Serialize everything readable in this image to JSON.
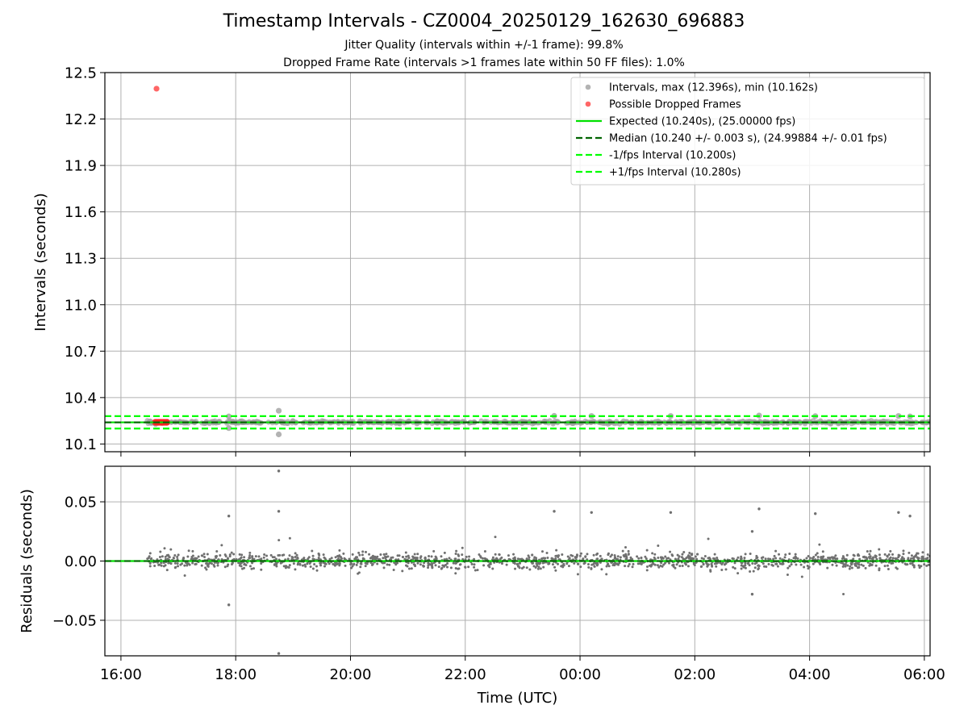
{
  "title": "Timestamp Intervals - CZ0004_20250129_162630_696883",
  "subtitle_1": "Jitter Quality (intervals within +/-1 frame): 99.8%",
  "subtitle_2": "Dropped Frame Rate (intervals >1 frames late within 50 FF files): 1.0%",
  "colors": {
    "intervals": "#a0a0a0",
    "dropped": "#ff4040",
    "expected": "#00e000",
    "median": "#006400",
    "fps_band": "#00ff00",
    "residual_points": "#707070",
    "grid": "#b0b0b0"
  },
  "chart_data": [
    {
      "type": "scatter",
      "panel": "intervals",
      "ylabel": "Intervals (seconds)",
      "xlabel": "",
      "x_range_hours_utc": [
        15.72,
        30.1
      ],
      "ylim": [
        10.05,
        12.5
      ],
      "yticks": [
        10.1,
        10.4,
        10.7,
        11.0,
        11.3,
        11.6,
        11.9,
        12.2,
        12.5
      ],
      "ytick_labels": [
        "10.1",
        "10.4",
        "10.7",
        "11.0",
        "11.3",
        "11.6",
        "11.9",
        "12.2",
        "12.5"
      ],
      "grid": true,
      "legend_position": "top-right",
      "legend": [
        {
          "label": "Intervals, max (12.396s), min (10.162s)",
          "kind": "dot",
          "color": "#a0a0a0"
        },
        {
          "label": "Possible Dropped Frames",
          "kind": "dot",
          "color": "#ff4040"
        },
        {
          "label": "Expected (10.240s), (25.00000 fps)",
          "kind": "line",
          "color": "#00e000"
        },
        {
          "label": "Median (10.240 +/- 0.003 s), (24.99884 +/- 0.01 fps)",
          "kind": "dash",
          "color": "#006400"
        },
        {
          "label": "-1/fps Interval (10.200s)",
          "kind": "dash",
          "color": "#00ff00"
        },
        {
          "label": "+1/fps Interval (10.280s)",
          "kind": "dash",
          "color": "#00ff00"
        }
      ],
      "reference_lines": {
        "expected": 10.24,
        "median": 10.24,
        "minus_1_fps": 10.2,
        "plus_1_fps": 10.28
      },
      "outliers": [
        {
          "x": 16.62,
          "y": 12.396,
          "series": "dropped"
        },
        {
          "x": 18.75,
          "y": 10.315,
          "series": "intervals"
        },
        {
          "x": 18.75,
          "y": 10.162,
          "series": "intervals"
        },
        {
          "x": 17.88,
          "y": 10.278,
          "series": "intervals"
        },
        {
          "x": 17.88,
          "y": 10.203,
          "series": "intervals"
        },
        {
          "x": 23.55,
          "y": 10.282,
          "series": "intervals"
        },
        {
          "x": 24.2,
          "y": 10.281,
          "series": "intervals"
        },
        {
          "x": 25.58,
          "y": 10.281,
          "series": "intervals"
        },
        {
          "x": 27.12,
          "y": 10.284,
          "series": "intervals"
        },
        {
          "x": 28.1,
          "y": 10.28,
          "series": "intervals"
        },
        {
          "x": 29.55,
          "y": 10.281,
          "series": "intervals"
        },
        {
          "x": 29.75,
          "y": 10.278,
          "series": "intervals"
        }
      ],
      "dropped_cluster": {
        "x_start": 16.6,
        "x_end": 16.8,
        "y": 10.24
      },
      "bulk_intervals": {
        "x_start": 16.45,
        "x_end": 30.1,
        "y_center": 10.24,
        "spread": 0.01
      }
    },
    {
      "type": "scatter",
      "panel": "residuals",
      "ylabel": "Residuals (seconds)",
      "xlabel": "Time (UTC)",
      "x_range_hours_utc": [
        15.72,
        30.1
      ],
      "xticks_hours": [
        16,
        18,
        20,
        22,
        24,
        26,
        28,
        30
      ],
      "xtick_labels": [
        "16:00",
        "18:00",
        "20:00",
        "22:00",
        "00:00",
        "02:00",
        "04:00",
        "06:00"
      ],
      "ylim": [
        -0.08,
        0.08
      ],
      "yticks": [
        -0.05,
        0.0,
        0.05
      ],
      "ytick_labels": [
        "−0.05",
        "0.00",
        "0.05"
      ],
      "grid": true,
      "outliers": [
        {
          "x": 18.75,
          "y": 0.076
        },
        {
          "x": 18.75,
          "y": -0.078
        },
        {
          "x": 18.75,
          "y": 0.042
        },
        {
          "x": 17.88,
          "y": 0.038
        },
        {
          "x": 17.88,
          "y": -0.037
        },
        {
          "x": 23.55,
          "y": 0.042
        },
        {
          "x": 24.2,
          "y": 0.041
        },
        {
          "x": 25.58,
          "y": 0.041
        },
        {
          "x": 27.12,
          "y": 0.044
        },
        {
          "x": 28.1,
          "y": 0.04
        },
        {
          "x": 29.55,
          "y": 0.041
        },
        {
          "x": 29.75,
          "y": 0.038
        },
        {
          "x": 27.0,
          "y": -0.028
        },
        {
          "x": 27.0,
          "y": 0.025
        }
      ],
      "bulk_residuals": {
        "x_start": 16.45,
        "x_end": 30.1,
        "center": 0.0,
        "spread": 0.006
      }
    }
  ]
}
